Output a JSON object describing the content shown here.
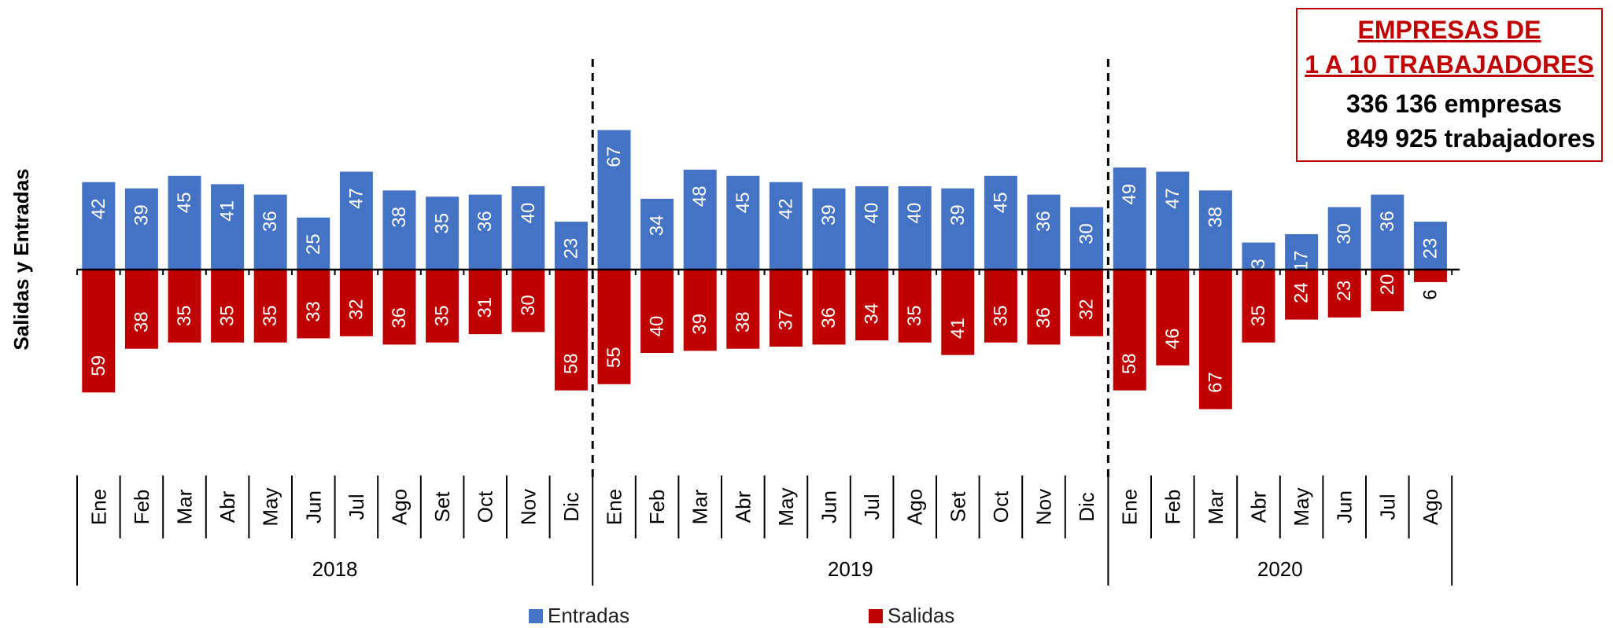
{
  "chart_data": {
    "type": "bar",
    "ylabel": "Salidas  y  Entradas",
    "groups": [
      {
        "label": "2018",
        "months": [
          "Ene",
          "Feb",
          "Mar",
          "Abr",
          "May",
          "Jun",
          "Jul",
          "Ago",
          "Set",
          "Oct",
          "Nov",
          "Dic"
        ]
      },
      {
        "label": "2019",
        "months": [
          "Ene",
          "Feb",
          "Mar",
          "Abr",
          "May",
          "Jun",
          "Jul",
          "Ago",
          "Set",
          "Oct",
          "Nov",
          "Dic"
        ]
      },
      {
        "label": "2020",
        "months": [
          "Ene",
          "Feb",
          "Mar",
          "Abr",
          "May",
          "Jun",
          "Jul",
          "Ago"
        ]
      }
    ],
    "series": [
      {
        "name": "Entradas",
        "color": "#4472c4",
        "values": [
          42,
          39,
          45,
          41,
          36,
          25,
          47,
          38,
          35,
          36,
          40,
          23,
          67,
          34,
          48,
          45,
          42,
          39,
          40,
          40,
          39,
          45,
          36,
          30,
          49,
          47,
          38,
          13,
          17,
          30,
          36,
          23
        ]
      },
      {
        "name": "Salidas",
        "color": "#c00000",
        "values": [
          59,
          38,
          35,
          35,
          35,
          33,
          32,
          36,
          35,
          31,
          30,
          58,
          55,
          40,
          39,
          38,
          37,
          36,
          34,
          35,
          41,
          35,
          36,
          32,
          58,
          46,
          67,
          35,
          24,
          23,
          20,
          6
        ]
      }
    ],
    "legend_position": "bottom",
    "grid": false
  },
  "info_box": {
    "title_line1": "EMPRESAS DE",
    "title_line2": "1 A 10 TRABAJADORES",
    "line1": "336 136 empresas",
    "line2": "849 925 trabajadores",
    "title_color": "#c00000"
  }
}
